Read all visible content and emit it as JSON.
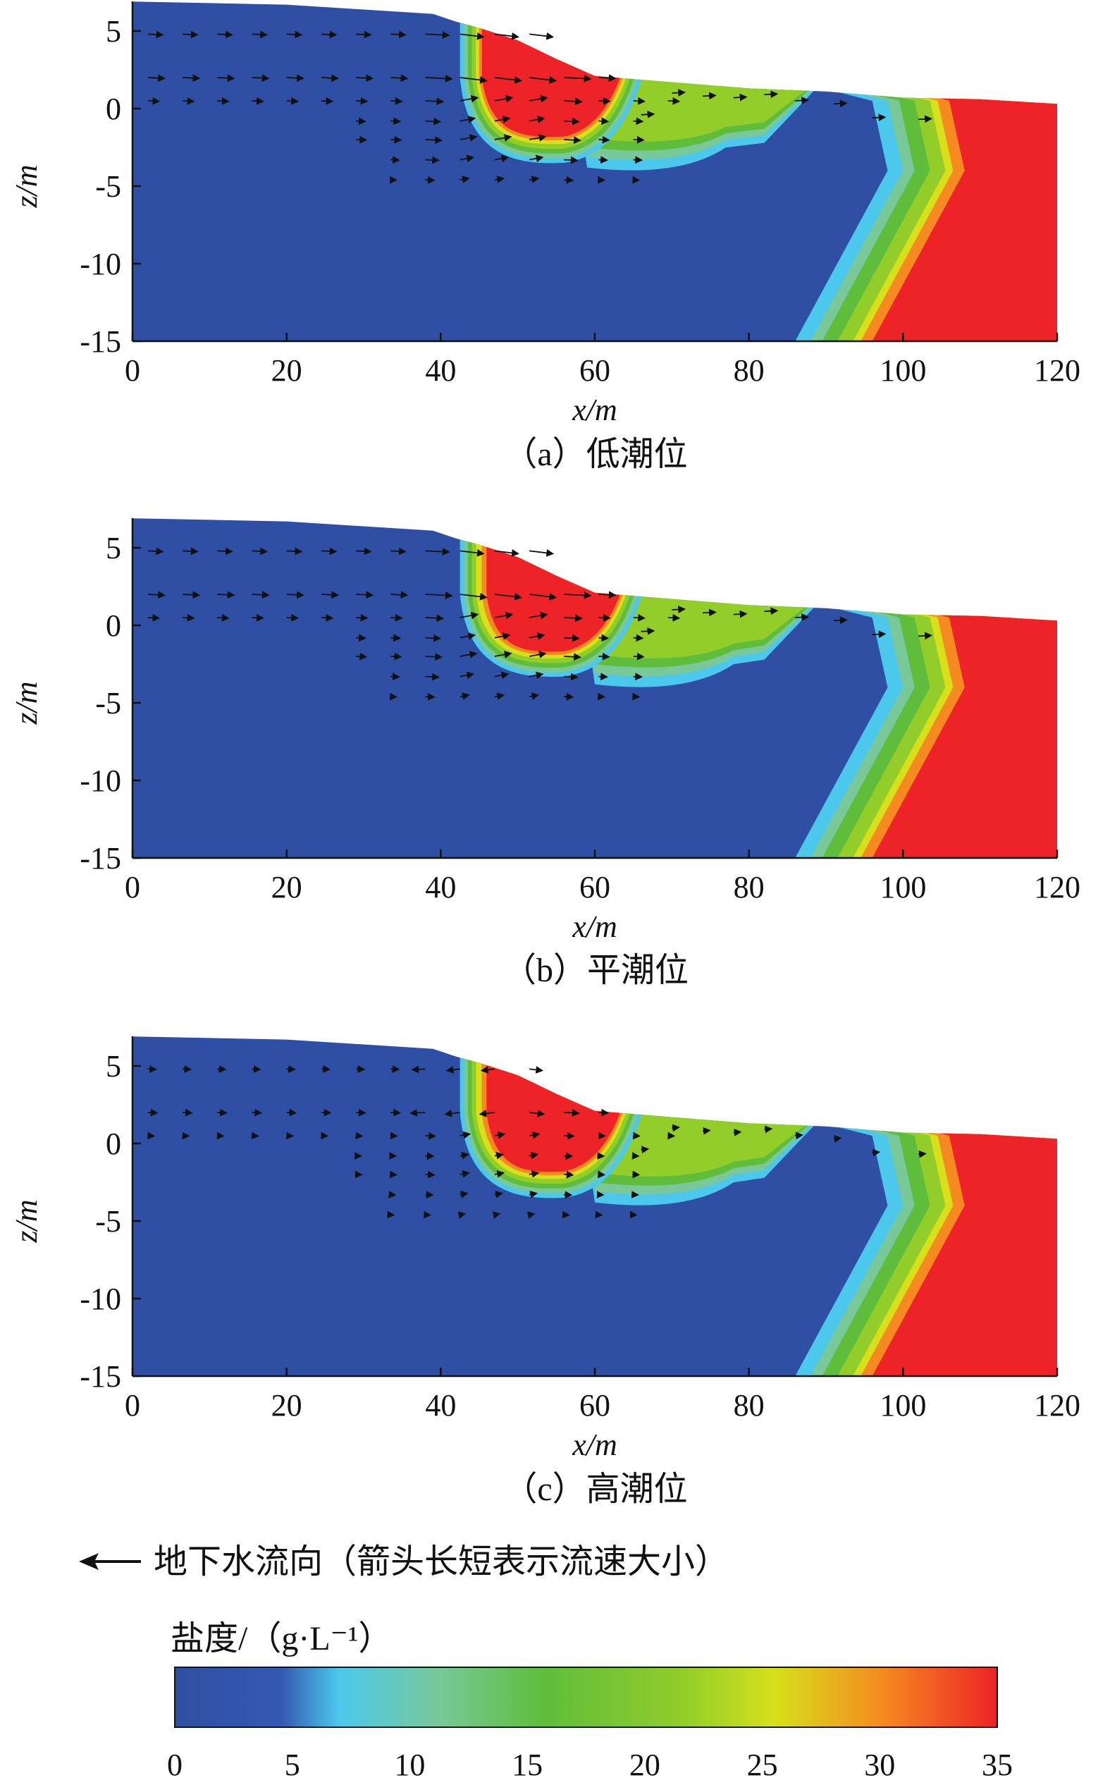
{
  "chart_data": [
    {
      "type": "heatmap",
      "caption": "（a）低潮位",
      "xlabel": "x/m",
      "ylabel": "z/m",
      "xlim": [
        0,
        120
      ],
      "ylim": [
        -15,
        7
      ],
      "xticks": [
        0,
        20,
        40,
        60,
        80,
        100,
        120
      ],
      "yticks": [
        5,
        0,
        -5,
        -10,
        -15
      ],
      "surface_profile": [
        [
          0,
          6.9
        ],
        [
          20,
          6.7
        ],
        [
          39,
          6.1
        ],
        [
          42,
          5.6
        ],
        [
          45,
          5.2
        ],
        [
          50,
          4.4
        ],
        [
          55,
          3.2
        ],
        [
          60,
          2.1
        ],
        [
          65,
          1.9
        ],
        [
          80,
          1.3
        ],
        [
          90,
          1.1
        ],
        [
          100,
          0.7
        ],
        [
          110,
          0.6
        ],
        [
          120,
          0.3
        ]
      ],
      "salt_zones": {
        "upper_plume": {
          "x_left": 40,
          "x_center": 53,
          "x_right": 63,
          "bottom_z": -3.5,
          "salinity": 35
        },
        "surface_strip_x": [
          63,
          100
        ],
        "wedge_toe": {
          "top_x": 103,
          "bottom_x": 93,
          "bend_z": -4,
          "bend_x": 105
        }
      },
      "arrows_note": "strong seaward flow x=0-60 at z=5 and z=2, converging into plume"
    },
    {
      "type": "heatmap",
      "caption": "（b）平潮位",
      "xlabel": "x/m",
      "ylabel": "z/m",
      "xlim": [
        0,
        120
      ],
      "ylim": [
        -15,
        7
      ],
      "xticks": [
        0,
        20,
        40,
        60,
        80,
        100,
        120
      ],
      "yticks": [
        5,
        0,
        -5,
        -10,
        -15
      ],
      "surface_profile": [
        [
          0,
          6.9
        ],
        [
          20,
          6.7
        ],
        [
          39,
          6.1
        ],
        [
          42,
          5.6
        ],
        [
          45,
          5.2
        ],
        [
          50,
          4.4
        ],
        [
          55,
          3.2
        ],
        [
          60,
          2.1
        ],
        [
          65,
          1.9
        ],
        [
          80,
          1.3
        ],
        [
          90,
          1.1
        ],
        [
          100,
          0.7
        ],
        [
          110,
          0.6
        ],
        [
          120,
          0.3
        ]
      ],
      "salt_zones": {
        "upper_plume": {
          "x_left": 41,
          "x_center": 53,
          "x_right": 64,
          "bottom_z": -3.3,
          "salinity": 35
        },
        "surface_strip_x": [
          64,
          100
        ],
        "wedge_toe": {
          "top_x": 103,
          "bottom_x": 93,
          "bend_z": -4,
          "bend_x": 105
        }
      },
      "arrows_note": "strong seaward flow x=0-60"
    },
    {
      "type": "heatmap",
      "caption": "（c）高潮位",
      "xlabel": "x/m",
      "ylabel": "z/m",
      "xlim": [
        0,
        120
      ],
      "ylim": [
        -15,
        7
      ],
      "xticks": [
        0,
        20,
        40,
        60,
        80,
        100,
        120
      ],
      "yticks": [
        5,
        0,
        -5,
        -10,
        -15
      ],
      "surface_profile": [
        [
          0,
          6.9
        ],
        [
          20,
          6.7
        ],
        [
          39,
          6.1
        ],
        [
          42,
          5.6
        ],
        [
          45,
          5.2
        ],
        [
          50,
          4.4
        ],
        [
          55,
          3.2
        ],
        [
          60,
          2.1
        ],
        [
          65,
          1.9
        ],
        [
          80,
          1.3
        ],
        [
          90,
          1.1
        ],
        [
          100,
          0.7
        ],
        [
          110,
          0.6
        ],
        [
          120,
          0.3
        ]
      ],
      "salt_zones": {
        "upper_plume": {
          "x_left": 41,
          "x_center": 53,
          "x_right": 64,
          "bottom_z": -3.5,
          "salinity": 35
        },
        "surface_strip_x": [
          64,
          100
        ],
        "wedge_toe": {
          "top_x": 103,
          "bottom_x": 93,
          "bend_z": -4,
          "bend_x": 105
        }
      },
      "arrows_note": "weaker flow, landward arrows near x=40"
    }
  ],
  "legend": {
    "arrow_text": "地下水流向（箭头长短表示流速大小）",
    "colorbar_title": "盐度/（g·L⁻¹）",
    "colorbar_ticks": [
      "0",
      "5",
      "10",
      "15",
      "20",
      "25",
      "30",
      "35"
    ],
    "colorbar_range": [
      0,
      35
    ],
    "colors": [
      "#2e4fa3",
      "#3a5fbc",
      "#4cc8ec",
      "#78c85a",
      "#5fbd3b",
      "#c8dd1e",
      "#f7a51e",
      "#ed2327"
    ]
  }
}
